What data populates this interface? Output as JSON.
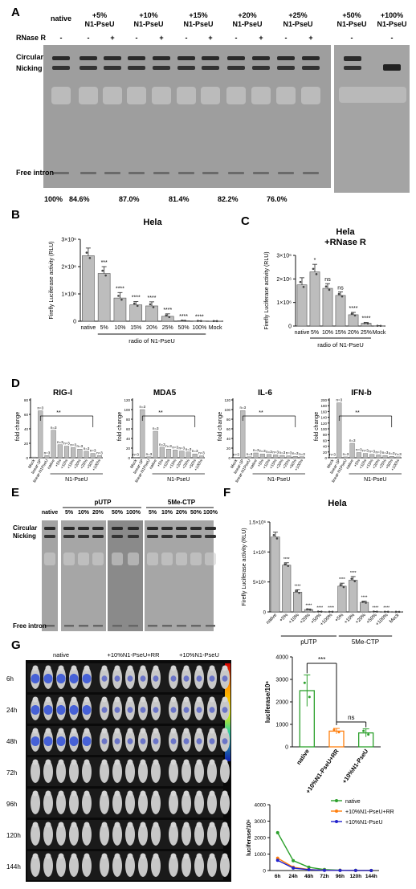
{
  "panels": {
    "A": {
      "letter": "A",
      "lane_groups": [
        {
          "name": "native",
          "label": "native"
        },
        {
          "name": "5",
          "label": "+5% N1-PseU"
        },
        {
          "name": "10",
          "label": "+10% N1-PseU"
        },
        {
          "name": "15",
          "label": "+15% N1-PseU"
        },
        {
          "name": "20",
          "label": "+20% N1-PseU"
        },
        {
          "name": "25",
          "label": "+25% N1-PseU"
        },
        {
          "name": "50",
          "label": "+50% N1-PseU"
        },
        {
          "name": "100",
          "label": "+100% N1-PseU"
        }
      ],
      "rnase_label": "RNase R",
      "rnase_signs": [
        "-",
        "-",
        "+",
        "-",
        "+",
        "-",
        "+",
        "-",
        "+",
        "-",
        "+",
        "-",
        "-"
      ],
      "band_labels": [
        "Circular",
        "Nicking",
        "Free intron"
      ],
      "percentages": [
        "100%",
        "84.6%",
        "87.0%",
        "81.4%",
        "82.2%",
        "76.0%"
      ]
    },
    "B": {
      "letter": "B",
      "chart_data": {
        "type": "bar",
        "title": "Hela",
        "ylabel": "Firefly Luciferase activity (RLU)",
        "ylim": [
          0,
          3000000
        ],
        "yticks": [
          "0",
          "1×10⁶",
          "2×10⁶",
          "3×10⁶"
        ],
        "categories": [
          "native",
          "5%",
          "10%",
          "15%",
          "20%",
          "25%",
          "50%",
          "100%",
          "Mock"
        ],
        "values": [
          2400000,
          1750000,
          850000,
          600000,
          560000,
          180000,
          20000,
          10000,
          5000
        ],
        "errors": [
          280000,
          250000,
          200000,
          120000,
          150000,
          90000,
          10000,
          5000,
          3000
        ],
        "significance": [
          "",
          "***",
          "****",
          "****",
          "****",
          "****",
          "****",
          "****",
          ""
        ],
        "group_label": "radio of N1-PseU"
      }
    },
    "C": {
      "letter": "C",
      "chart_data": {
        "type": "bar",
        "title": "Hela\n+RNase R",
        "title_lines": [
          "Hela",
          "+RNase R"
        ],
        "ylabel": "Firefly Luciferase activity (RLU)",
        "ylim": [
          0,
          3000000
        ],
        "yticks": [
          "0",
          "1×10⁶",
          "2×10⁶",
          "3×10⁶"
        ],
        "categories": [
          "native",
          "5%",
          "10%",
          "15%",
          "20%",
          "25%",
          "Mock"
        ],
        "values": [
          1750000,
          2300000,
          1600000,
          1300000,
          480000,
          120000,
          10000
        ],
        "errors": [
          300000,
          320000,
          200000,
          150000,
          100000,
          30000,
          5000
        ],
        "significance": [
          "",
          "*",
          "ns",
          "ns",
          "****",
          "****",
          ""
        ],
        "group_label": "radio of N1-PseU"
      }
    },
    "D": {
      "letter": "D",
      "charts": [
        {
          "name": "rig-i",
          "title": "RIG-I",
          "ylabel": "fold change",
          "yticks": [
            "0",
            "20",
            "40",
            "60",
            "80"
          ],
          "ymax": 80,
          "categories": [
            "Mock",
            "linear-3P",
            "linear-N1PseU",
            "native",
            "+5%",
            "+10%",
            "+15%",
            "+20%",
            "+25%",
            "+50%",
            "+100%"
          ],
          "values": [
            1,
            65,
            3,
            38,
            18,
            16,
            14,
            12,
            9,
            6,
            3
          ],
          "n_labels": [
            "",
            "n=3",
            "n=3",
            "n=3",
            "n=3",
            "n=3",
            "n=3",
            "n=3",
            "n=3",
            "n=3",
            "n=3"
          ],
          "sig": "**",
          "group_label": "N1-PseU"
        },
        {
          "name": "mda5",
          "title": "MDA5",
          "ylabel": "fold change",
          "yticks": [
            "0",
            "20",
            "40",
            "60",
            "80",
            "100",
            "120"
          ],
          "ymax": 120,
          "categories": [
            "Mock",
            "linear-3P",
            "linear-N1PseU",
            "native",
            "+5%",
            "+10%",
            "+15%",
            "+20%",
            "+25%",
            "+50%",
            "+100%"
          ],
          "values": [
            1,
            100,
            2,
            55,
            22,
            18,
            16,
            14,
            12,
            8,
            4
          ],
          "n_labels": [
            "n=3",
            "n=3",
            "n=3",
            "n=3",
            "n=3",
            "n=3",
            "n=3",
            "n=3",
            "n=3",
            "n=3",
            "n=3"
          ],
          "sig": "**",
          "group_label": "N1-PseU"
        },
        {
          "name": "il-6",
          "title": "IL-6",
          "ylabel": "fold change",
          "yticks": [
            "0",
            "20",
            "40",
            "60",
            "80",
            "100",
            "120"
          ],
          "ymax": 120,
          "categories": [
            "Mock",
            "linear-3P",
            "linear-N1PseU",
            "native",
            "+5%",
            "+10%",
            "+15%",
            "+20%",
            "+25%",
            "+50%",
            "+100%"
          ],
          "values": [
            1,
            98,
            2,
            10,
            8,
            7,
            6,
            5,
            4,
            3,
            2
          ],
          "n_labels": [
            "n=3",
            "n=3",
            "n=3",
            "n=3",
            "n=3",
            "n=3",
            "n=3",
            "n=3",
            "n=3",
            "n=3",
            "n=3"
          ],
          "sig": "**",
          "group_label": "N1-PseU"
        },
        {
          "name": "ifn-b",
          "title": "IFN-b",
          "ylabel": "fold change",
          "yticks": [
            "0",
            "20",
            "40",
            "60",
            "80",
            "100",
            "120",
            "140",
            "160",
            "180",
            "200"
          ],
          "ymax": 200,
          "categories": [
            "Mock",
            "linear-3P",
            "linear-N1PseU",
            "native",
            "+5%",
            "+10%",
            "+15%",
            "+20%",
            "+25%",
            "+50%",
            "+100%"
          ],
          "values": [
            1,
            190,
            3,
            50,
            18,
            15,
            12,
            10,
            8,
            5,
            3
          ],
          "n_labels": [
            "n=3",
            "n=3",
            "n=3",
            "n=3",
            "n=3",
            "n=3",
            "n=3",
            "n=3",
            "n=3",
            "n=3",
            "n=3"
          ],
          "sig": "**",
          "group_label": "N1-PseU"
        }
      ]
    },
    "E": {
      "letter": "E",
      "group_labels": [
        "pUTP",
        "5Me-CTP"
      ],
      "lane_labels": [
        "native",
        "5%",
        "10%",
        "20%",
        "50%",
        "100%",
        "5%",
        "10%",
        "20%",
        "50%",
        "100%"
      ],
      "band_labels": [
        "Circular",
        "Nicking",
        "Free intron"
      ]
    },
    "F": {
      "letter": "F",
      "chart_data": {
        "type": "bar",
        "title": "Hela",
        "ylabel": "Firefly Luciferase activity (RLU)",
        "ylim": [
          0,
          1500000
        ],
        "yticks": [
          "0",
          "5×10⁵",
          "1×10⁶",
          "1.5×10⁶"
        ],
        "categories": [
          "native",
          "+5%",
          "+10%",
          "+20%",
          "+50%",
          "+100%",
          "+5%",
          "+10%",
          "+20%",
          "+50%",
          "+100%",
          "Mock"
        ],
        "values": [
          1250000,
          780000,
          330000,
          40000,
          5000,
          3000,
          430000,
          530000,
          160000,
          5000,
          3000,
          2000
        ],
        "errors": [
          80000,
          40000,
          40000,
          10000,
          2000,
          1000,
          50000,
          60000,
          20000,
          2000,
          1000,
          1000
        ],
        "significance": [
          "",
          "****",
          "****",
          "****",
          "****",
          "****",
          "****",
          "****",
          "****",
          "****",
          "****",
          ""
        ],
        "group_labels": [
          "pUTP",
          "5Me-CTP"
        ]
      }
    },
    "G": {
      "letter": "G",
      "column_labels": [
        "native",
        "+10%N1-PseU+RR",
        "+10%N1-PseU"
      ],
      "row_labels": [
        "6h",
        "24h",
        "48h",
        "72h",
        "96h",
        "120h",
        "144h"
      ],
      "scatter_chart": {
        "type": "bar",
        "ylabel": "luciferase/10⁶",
        "yticks": [
          "0",
          "1000",
          "2000",
          "3000",
          "4000"
        ],
        "ylim": [
          0,
          4000
        ],
        "categories": [
          "native",
          "+10%N1-PseU+RR",
          "+10%N1-PseU"
        ],
        "values": [
          2500,
          700,
          620
        ],
        "errors": [
          700,
          120,
          180
        ],
        "colors": [
          "#2ca02c",
          "#ff7f0e",
          "#2ca02c"
        ],
        "sig_top": "***",
        "sig_low": "ns"
      },
      "line_chart": {
        "type": "line",
        "ylabel": "luciferase/10⁶",
        "yticks": [
          "0",
          "1000",
          "2000",
          "3000",
          "4000"
        ],
        "ylim": [
          0,
          4000
        ],
        "x": [
          "6h",
          "24h",
          "48h",
          "72h",
          "96h",
          "120h",
          "144h"
        ],
        "series": [
          {
            "name": "native",
            "color": "#2ca02c",
            "values": [
              2300,
              600,
              200,
              60,
              20,
              10,
              5
            ]
          },
          {
            "name": "+10%N1-PseU+RR",
            "color": "#ff7f0e",
            "values": [
              750,
              200,
              60,
              20,
              10,
              5,
              3
            ]
          },
          {
            "name": "+10%N1-PseU",
            "color": "#2222cc",
            "values": [
              620,
              150,
              50,
              15,
              8,
              4,
              2
            ]
          }
        ]
      }
    }
  }
}
